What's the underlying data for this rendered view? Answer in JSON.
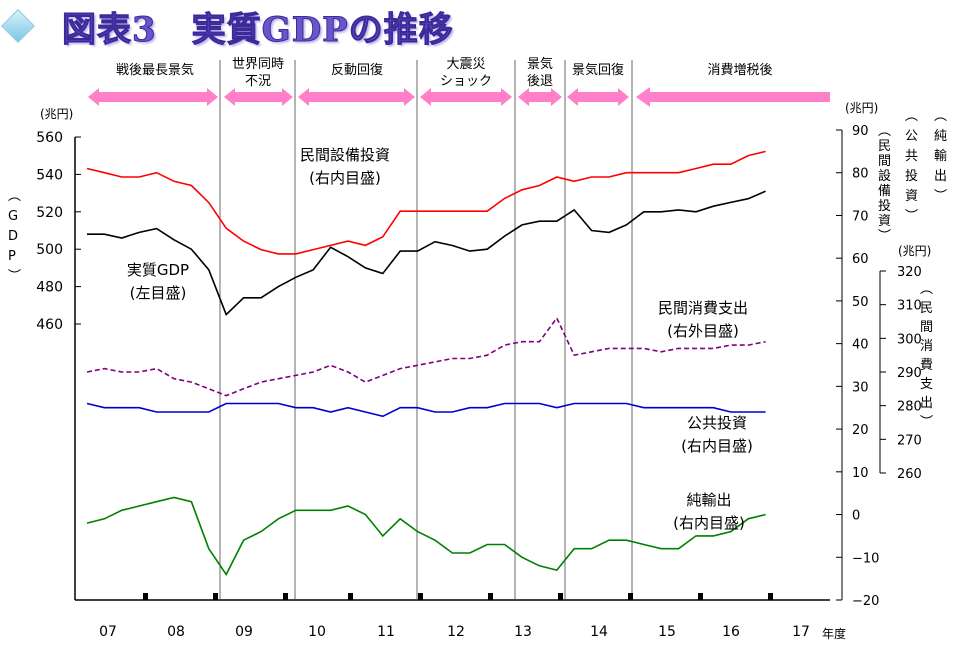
{
  "title": "図表3　実質GDPの推移",
  "period_labels": [
    {
      "text": "戦後最長景気"
    },
    {
      "text": "世界同時",
      "text2": "不況"
    },
    {
      "text": "反動回復"
    },
    {
      "text": "大震災",
      "text2": "ショック"
    },
    {
      "text": "景気",
      "text2": "後退"
    },
    {
      "text": "景気回復"
    },
    {
      "text": "消費増税後"
    }
  ],
  "units": {
    "left": "(兆円)",
    "right": "(兆円)",
    "right2": "(兆円)",
    "xunit": "年度"
  },
  "axis_titles": {
    "left": "(GDP)",
    "right_a": "(純輸出)",
    "right_b": "(公共投資)",
    "right_c": "(民間設備投資)",
    "right_d": "(民間消費支出)"
  },
  "annotations": {
    "gdp": [
      "実質GDP",
      "(左目盛)"
    ],
    "capex": [
      "民間設備投資",
      "(右内目盛)"
    ],
    "consumption": [
      "民間消費支出",
      "(右外目盛)"
    ],
    "public": [
      "公共投資",
      "(右内目盛)"
    ],
    "netexports": [
      "純輸出",
      "(右内目盛)"
    ]
  },
  "colors": {
    "gdp": "#000000",
    "capex": "#ff0000",
    "consumption": "#800080",
    "public": "#0000cc",
    "netexports": "#008000",
    "arrow": "#ff80c8"
  },
  "chart_data": {
    "type": "line",
    "x_tick_labels": [
      "07",
      "08",
      "09",
      "10",
      "11",
      "12",
      "13",
      "14",
      "15",
      "16",
      "17"
    ],
    "left_axis": {
      "label": "(GDP)",
      "unit": "兆円",
      "ticks": [
        460,
        480,
        500,
        520,
        540,
        560
      ]
    },
    "right_inner_axis": {
      "unit": "兆円",
      "ticks": [
        -20,
        -10,
        0,
        10,
        20,
        30,
        40,
        50,
        60,
        70,
        80,
        90
      ]
    },
    "right_outer_axis": {
      "unit": "兆円",
      "ticks": [
        260,
        270,
        280,
        290,
        300,
        310,
        320
      ]
    },
    "x": [
      "2007Q2",
      "2007Q3",
      "2007Q4",
      "2008Q1",
      "2008Q2",
      "2008Q3",
      "2008Q4",
      "2009Q1",
      "2009Q2",
      "2009Q3",
      "2009Q4",
      "2010Q1",
      "2010Q2",
      "2010Q3",
      "2010Q4",
      "2011Q1",
      "2011Q2",
      "2011Q3",
      "2011Q4",
      "2012Q1",
      "2012Q2",
      "2012Q3",
      "2012Q4",
      "2013Q1",
      "2013Q2",
      "2013Q3",
      "2013Q4",
      "2014Q1",
      "2014Q2",
      "2014Q3",
      "2014Q4",
      "2015Q1",
      "2015Q2",
      "2015Q3",
      "2015Q4",
      "2016Q1",
      "2016Q2",
      "2016Q3",
      "2016Q4",
      "2017Q1"
    ],
    "series": [
      {
        "name": "実質GDP",
        "axis": "left",
        "values": [
          508,
          508,
          506,
          509,
          511,
          505,
          500,
          489,
          465,
          474,
          474,
          480,
          485,
          489,
          501,
          496,
          490,
          487,
          499,
          499,
          504,
          502,
          499,
          500,
          507,
          513,
          515,
          515,
          521,
          510,
          509,
          513,
          520,
          520,
          521,
          520,
          523,
          525,
          527,
          531
        ]
      },
      {
        "name": "民間設備投資",
        "axis": "right_inner",
        "values": [
          81,
          80,
          79,
          79,
          80,
          78,
          77,
          73,
          67,
          64,
          62,
          61,
          61,
          62,
          63,
          64,
          63,
          65,
          71,
          71,
          71,
          71,
          71,
          71,
          74,
          76,
          77,
          79,
          78,
          79,
          79,
          80,
          80,
          80,
          80,
          81,
          82,
          82,
          84,
          85
        ]
      },
      {
        "name": "民間消費支出",
        "axis": "right_outer",
        "values": [
          290,
          291,
          290,
          290,
          291,
          288,
          287,
          285,
          283,
          285,
          287,
          288,
          289,
          290,
          292,
          290,
          287,
          289,
          291,
          292,
          293,
          294,
          294,
          295,
          298,
          299,
          299,
          306,
          295,
          296,
          297,
          297,
          297,
          296,
          297,
          297,
          297,
          298,
          298,
          299
        ]
      },
      {
        "name": "公共投資",
        "axis": "right_inner",
        "values": [
          26,
          25,
          25,
          25,
          24,
          24,
          24,
          24,
          26,
          26,
          26,
          26,
          25,
          25,
          24,
          25,
          24,
          23,
          25,
          25,
          24,
          24,
          25,
          25,
          26,
          26,
          26,
          25,
          26,
          26,
          26,
          26,
          25,
          25,
          25,
          25,
          25,
          24,
          24,
          24
        ]
      },
      {
        "name": "純輸出",
        "axis": "right_inner",
        "values": [
          -2,
          -1,
          1,
          2,
          3,
          4,
          3,
          -8,
          -14,
          -6,
          -4,
          -1,
          1,
          1,
          1,
          2,
          0,
          -5,
          -1,
          -4,
          -6,
          -9,
          -9,
          -7,
          -7,
          -10,
          -12,
          -13,
          -8,
          -8,
          -6,
          -6,
          -7,
          -8,
          -8,
          -5,
          -5,
          -4,
          -1,
          0
        ]
      }
    ]
  }
}
